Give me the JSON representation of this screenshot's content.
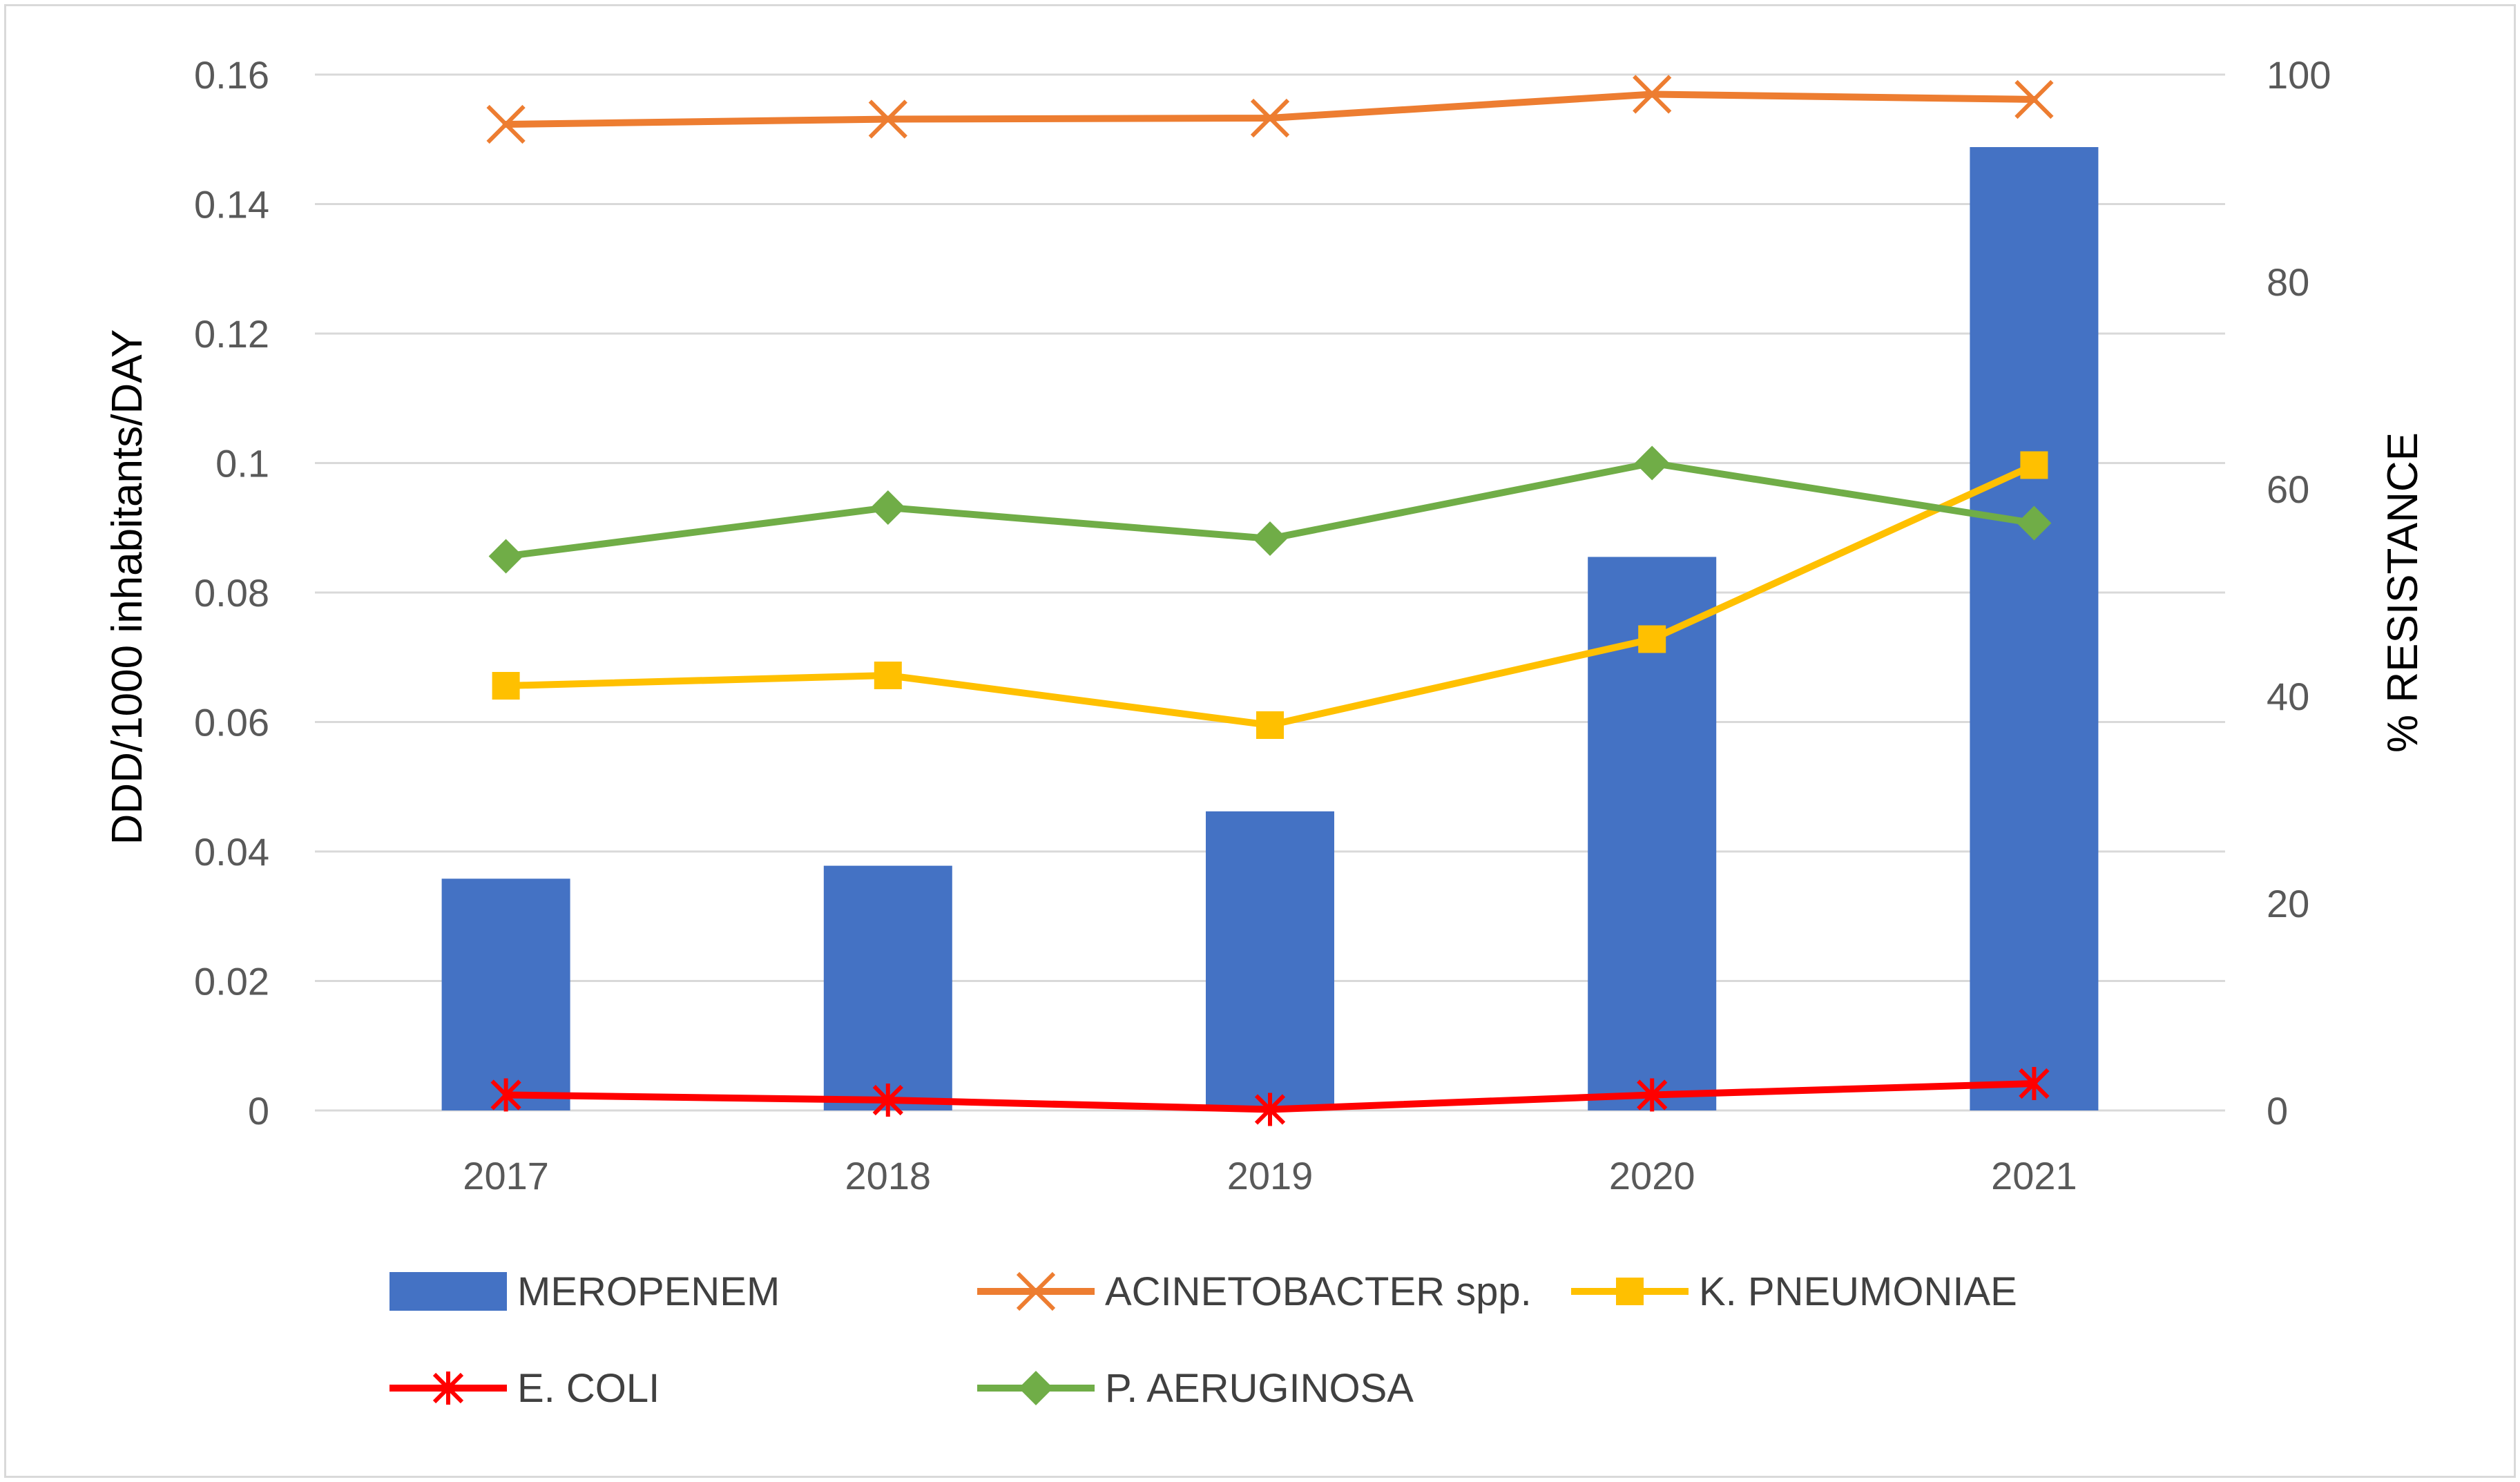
{
  "chart_data": {
    "type": "bar+line",
    "title": "",
    "categories": [
      "2017",
      "2018",
      "2019",
      "2020",
      "2021"
    ],
    "bar_series": {
      "name": "MEROPENEM",
      "axis": "left",
      "color": "#4472c4",
      "values": [
        0.0358,
        0.0378,
        0.0462,
        0.0855,
        0.1488
      ]
    },
    "line_series": [
      {
        "name": "ACINETOBACTER spp.",
        "axis": "right",
        "color": "#ed7d31",
        "marker": "x",
        "values": [
          95.2,
          95.7,
          95.8,
          98.1,
          97.6
        ]
      },
      {
        "name": "K. PNEUMONIAE",
        "axis": "right",
        "color": "#ffc000",
        "marker": "square",
        "values": [
          41.0,
          42.0,
          37.2,
          45.5,
          62.3
        ]
      },
      {
        "name": "E. COLI",
        "axis": "right",
        "color": "#ff0000",
        "marker": "star",
        "values": [
          1.5,
          1.0,
          0.1,
          1.5,
          2.6
        ]
      },
      {
        "name": "P. AERUGINOSA",
        "axis": "right",
        "color": "#70ad47",
        "marker": "diamond",
        "values": [
          53.5,
          58.2,
          55.2,
          62.5,
          56.7
        ]
      }
    ],
    "y_left": {
      "label": "DDD/1000 inhabitants/DAY",
      "ylim": [
        0,
        0.16
      ],
      "ticks": [
        0,
        0.02,
        0.04,
        0.06,
        0.08,
        0.1,
        0.12,
        0.14,
        0.16
      ],
      "tick_labels": [
        "0",
        "0.02",
        "0.04",
        "0.06",
        "0.08",
        "0.1",
        "0.12",
        "0.14",
        "0.16"
      ]
    },
    "y_right": {
      "label": "% RESISTANCE",
      "ylim": [
        0,
        100
      ],
      "ticks": [
        0,
        20,
        40,
        60,
        80,
        100
      ],
      "tick_labels": [
        "0",
        "20",
        "40",
        "60",
        "80",
        "100"
      ]
    },
    "grid": true,
    "legend_position": "bottom",
    "gridline_color": "#d9d9d9",
    "frame_color": "#d9d9d9"
  }
}
